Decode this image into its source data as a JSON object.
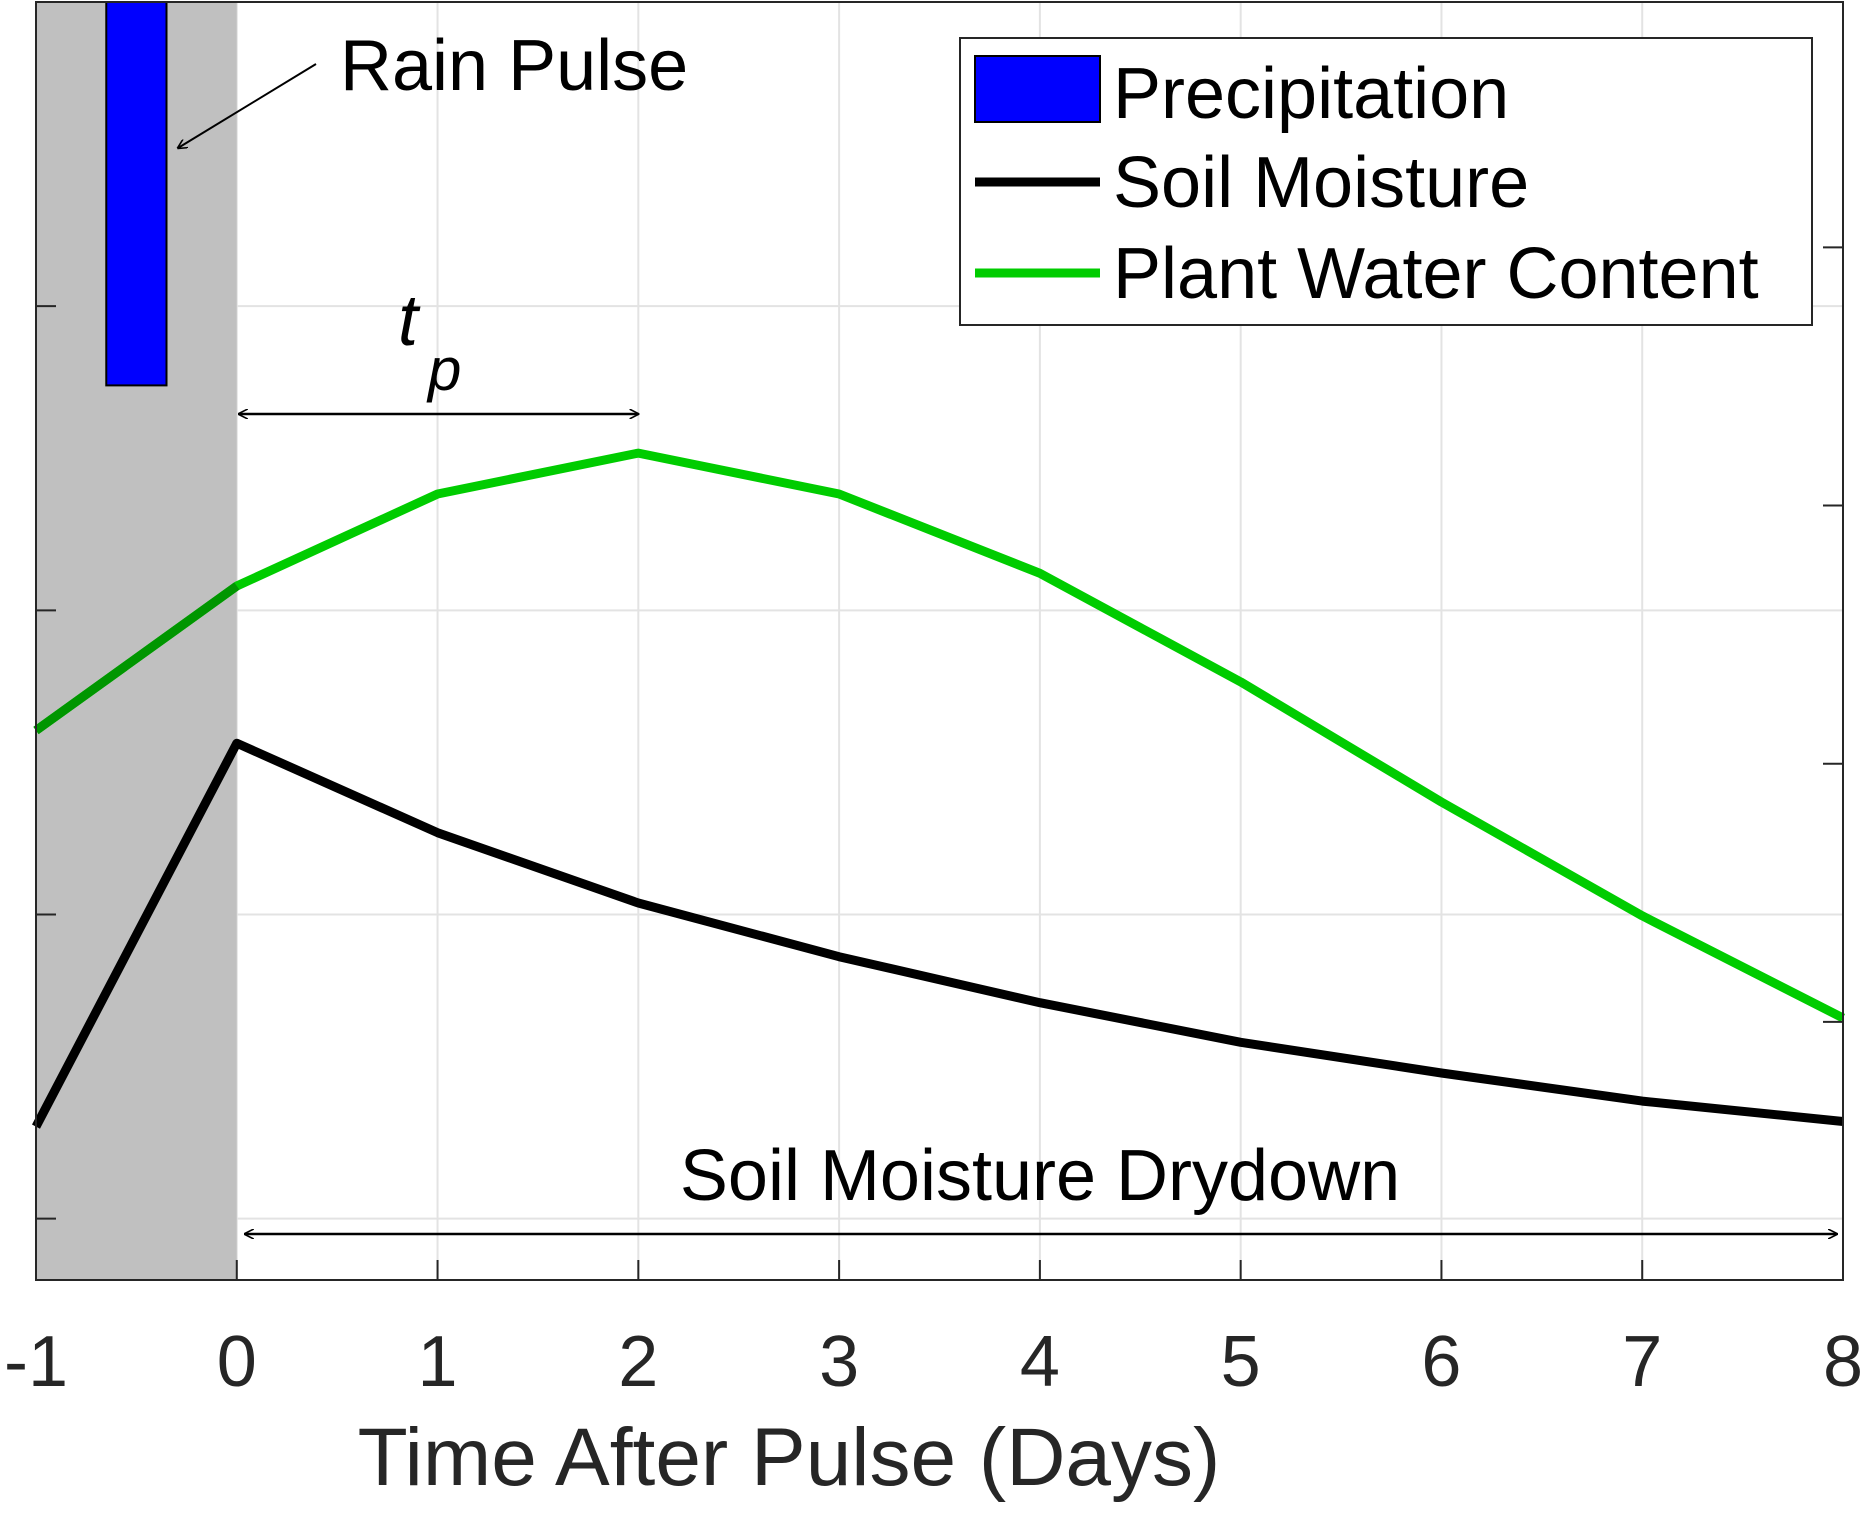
{
  "chart_data": {
    "type": "line",
    "xlabel": "Time After Pulse (Days)",
    "ylabel": "",
    "xlim": [
      -1,
      8
    ],
    "ylim": [
      0,
      1
    ],
    "x_ticks": [
      -1,
      0,
      1,
      2,
      3,
      4,
      5,
      6,
      7,
      8
    ],
    "x_tick_labels": [
      "-1",
      "0",
      "1",
      "2",
      "3",
      "4",
      "5",
      "6",
      "7",
      "8"
    ],
    "y_ticks": [
      0.048,
      0.286,
      0.524,
      0.762
    ],
    "y_ticks_right": [
      0.202,
      0.404,
      0.606,
      0.808
    ],
    "grid": true,
    "legend_position": "top-right",
    "shaded_region": {
      "x": [
        -1,
        0
      ],
      "color": "#c0c0c0"
    },
    "series": [
      {
        "name": "Precipitation",
        "type": "bar",
        "color": "#0000ff",
        "x_range": [
          -0.65,
          -0.35
        ],
        "y_range": [
          0.7,
          1.0
        ]
      },
      {
        "name": "Soil Moisture",
        "type": "line",
        "color": "#000000",
        "x": [
          -1,
          0,
          1,
          2,
          3,
          4,
          5,
          6,
          7,
          8
        ],
        "y": [
          0.12,
          0.42,
          0.35,
          0.295,
          0.253,
          0.217,
          0.186,
          0.162,
          0.14,
          0.124
        ]
      },
      {
        "name": "Plant Water Content",
        "type": "line",
        "color": "#00cc00",
        "shaded_color": "#009600",
        "x": [
          -1,
          0,
          1,
          2,
          3,
          4,
          5,
          6,
          7,
          8
        ],
        "y": [
          0.43,
          0.543,
          0.615,
          0.647,
          0.615,
          0.553,
          0.468,
          0.374,
          0.285,
          0.205
        ]
      }
    ],
    "annotations": {
      "rain_pulse": "Rain Pulse",
      "tp_main": "t",
      "tp_sub": "p",
      "tp_range": [
        0,
        2
      ],
      "drydown": "Soil Moisture Drydown",
      "drydown_range": [
        0,
        8
      ]
    }
  }
}
